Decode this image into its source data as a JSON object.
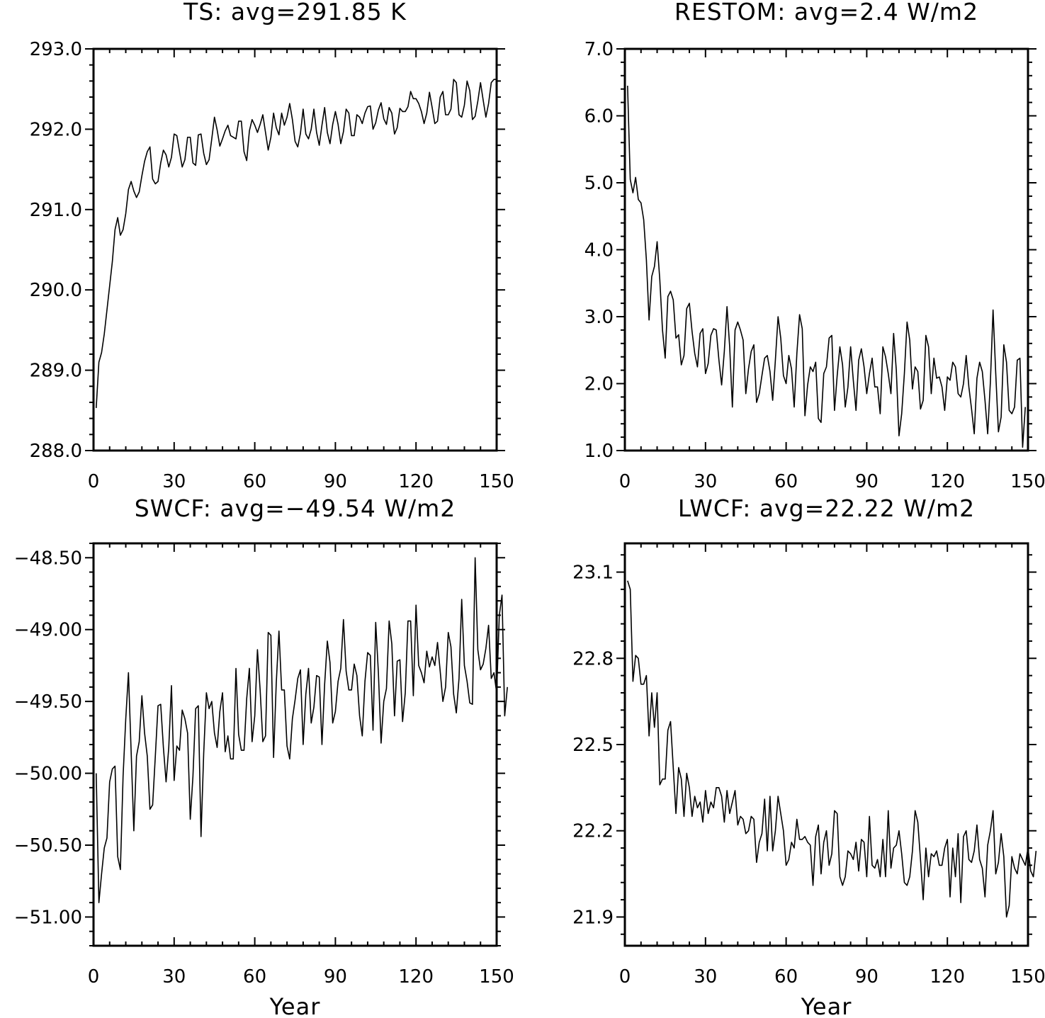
{
  "chart_data": [
    {
      "type": "line",
      "title": "TS: avg=291.85 K",
      "xlabel": "",
      "ylabel": "",
      "xlim": [
        0,
        150
      ],
      "ylim": [
        288.0,
        293.0
      ],
      "xticks": [
        0,
        30,
        60,
        90,
        120,
        150
      ],
      "xtick_labels": [
        "0",
        "30",
        "60",
        "90",
        "120",
        "150"
      ],
      "yticks": [
        288.0,
        289.0,
        290.0,
        291.0,
        292.0,
        293.0
      ],
      "ytick_labels": [
        "288.0",
        "289.0",
        "290.0",
        "291.0",
        "292.0",
        "293.0"
      ],
      "x_start": 1,
      "values": [
        288.53,
        289.1,
        289.22,
        289.45,
        289.75,
        290.05,
        290.35,
        290.75,
        290.9,
        290.68,
        290.75,
        290.95,
        291.25,
        291.35,
        291.23,
        291.15,
        291.22,
        291.42,
        291.6,
        291.72,
        291.78,
        291.38,
        291.32,
        291.35,
        291.58,
        291.74,
        291.68,
        291.53,
        291.65,
        291.94,
        291.92,
        291.72,
        291.53,
        291.62,
        291.9,
        291.9,
        291.58,
        291.55,
        291.93,
        291.94,
        291.7,
        291.56,
        291.62,
        291.88,
        292.15,
        291.99,
        291.79,
        291.88,
        291.98,
        292.05,
        291.92,
        291.9,
        291.88,
        292.1,
        292.1,
        291.72,
        291.61,
        291.98,
        292.12,
        292.05,
        291.96,
        292.06,
        292.18,
        291.96,
        291.74,
        291.9,
        292.2,
        292.02,
        291.93,
        292.2,
        292.05,
        292.15,
        292.32,
        292.12,
        291.85,
        291.78,
        291.95,
        292.25,
        291.94,
        291.88,
        292.0,
        292.25,
        291.96,
        291.8,
        292.05,
        292.27,
        291.96,
        291.82,
        292.06,
        292.22,
        292.06,
        291.82,
        291.97,
        292.25,
        292.2,
        291.92,
        291.92,
        292.18,
        292.15,
        292.07,
        292.2,
        292.28,
        292.29,
        292.0,
        292.08,
        292.24,
        292.33,
        292.13,
        292.06,
        292.27,
        292.2,
        291.94,
        292.02,
        292.26,
        292.22,
        292.22,
        292.28,
        292.47,
        292.38,
        292.38,
        292.32,
        292.22,
        292.07,
        292.2,
        292.46,
        292.27,
        292.07,
        292.1,
        292.4,
        292.47,
        292.18,
        292.18,
        292.25,
        292.62,
        292.58,
        292.18,
        292.15,
        292.3,
        292.6,
        292.48,
        292.12,
        292.16,
        292.35,
        292.58,
        292.36,
        292.15,
        292.32,
        292.58,
        292.62,
        292.62
      ]
    },
    {
      "type": "line",
      "title": "RESTOM: avg=2.4 W/m2",
      "xlabel": "",
      "ylabel": "",
      "xlim": [
        0,
        150
      ],
      "ylim": [
        1.0,
        7.0
      ],
      "xticks": [
        0,
        30,
        60,
        90,
        120,
        150
      ],
      "xtick_labels": [
        "0",
        "30",
        "60",
        "90",
        "120",
        "150"
      ],
      "yticks": [
        1.0,
        2.0,
        3.0,
        4.0,
        5.0,
        6.0,
        7.0
      ],
      "ytick_labels": [
        "1.0",
        "2.0",
        "3.0",
        "4.0",
        "5.0",
        "6.0",
        "7.0"
      ],
      "x_start": 1,
      "values": [
        6.45,
        5.05,
        4.85,
        5.08,
        4.75,
        4.7,
        4.45,
        3.85,
        2.95,
        3.6,
        3.75,
        4.12,
        3.55,
        2.8,
        2.38,
        3.3,
        3.38,
        3.25,
        2.68,
        2.73,
        2.28,
        2.42,
        3.12,
        3.2,
        2.78,
        2.45,
        2.25,
        2.75,
        2.82,
        2.15,
        2.3,
        2.72,
        2.82,
        2.8,
        2.35,
        1.98,
        2.48,
        3.15,
        2.55,
        1.65,
        2.8,
        2.92,
        2.8,
        2.65,
        1.85,
        2.22,
        2.48,
        2.58,
        1.72,
        1.85,
        2.12,
        2.38,
        2.42,
        2.18,
        1.75,
        2.35,
        3.0,
        2.68,
        2.12,
        2.0,
        2.42,
        2.22,
        1.65,
        2.45,
        3.03,
        2.82,
        1.52,
        1.98,
        2.25,
        2.18,
        2.32,
        1.48,
        1.42,
        2.15,
        2.25,
        2.68,
        2.72,
        1.6,
        2.12,
        2.55,
        2.28,
        1.65,
        1.95,
        2.55,
        2.05,
        1.6,
        2.35,
        2.52,
        2.25,
        1.85,
        2.15,
        2.38,
        1.95,
        1.95,
        1.55,
        2.55,
        2.4,
        2.15,
        1.85,
        2.75,
        2.2,
        1.22,
        1.55,
        2.15,
        2.92,
        2.65,
        1.92,
        2.25,
        2.18,
        1.62,
        1.75,
        2.72,
        2.55,
        1.85,
        2.38,
        2.08,
        2.1,
        1.95,
        1.6,
        2.1,
        2.05,
        2.32,
        2.25,
        1.85,
        1.8,
        2.0,
        2.42,
        1.95,
        1.62,
        1.25,
        2.08,
        2.32,
        2.18,
        1.75,
        1.25,
        2.02,
        3.1,
        2.15,
        1.28,
        1.5,
        2.58,
        2.32,
        1.6,
        1.55,
        1.65,
        2.35,
        2.38,
        1.05,
        1.65
      ]
    },
    {
      "type": "line",
      "title": "SWCF: avg=−49.54 W/m2",
      "xlabel": "Year",
      "ylabel": "",
      "xlim": [
        0,
        150
      ],
      "ylim": [
        -51.2,
        -48.4
      ],
      "xticks": [
        0,
        30,
        60,
        90,
        120,
        150
      ],
      "xtick_labels": [
        "0",
        "30",
        "60",
        "90",
        "120",
        "150"
      ],
      "yticks": [
        -51.0,
        -50.5,
        -50.0,
        -49.5,
        -49.0,
        -48.5
      ],
      "ytick_labels": [
        "−51.00",
        "−50.50",
        "−50.00",
        "−49.50",
        "−49.00",
        "−48.50"
      ],
      "x_start": 1,
      "values": [
        -50.0,
        -50.9,
        -50.7,
        -50.52,
        -50.45,
        -50.06,
        -49.97,
        -49.95,
        -50.58,
        -50.67,
        -50.02,
        -49.62,
        -49.3,
        -49.85,
        -50.4,
        -49.88,
        -49.78,
        -49.46,
        -49.72,
        -49.88,
        -50.25,
        -50.22,
        -49.88,
        -49.53,
        -49.52,
        -49.82,
        -50.06,
        -49.82,
        -49.39,
        -50.05,
        -49.81,
        -49.84,
        -49.56,
        -49.62,
        -49.72,
        -50.32,
        -50.02,
        -49.55,
        -49.53,
        -50.44,
        -49.86,
        -49.44,
        -49.55,
        -49.5,
        -49.72,
        -49.82,
        -49.57,
        -49.44,
        -49.85,
        -49.74,
        -49.9,
        -49.9,
        -49.27,
        -49.73,
        -49.84,
        -49.84,
        -49.48,
        -49.27,
        -49.78,
        -49.6,
        -49.14,
        -49.42,
        -49.78,
        -49.74,
        -49.02,
        -49.04,
        -49.89,
        -49.37,
        -49.01,
        -49.42,
        -49.42,
        -49.81,
        -49.9,
        -49.62,
        -49.49,
        -49.34,
        -49.28,
        -49.8,
        -49.45,
        -49.27,
        -49.65,
        -49.54,
        -49.32,
        -49.33,
        -49.8,
        -49.38,
        -49.08,
        -49.23,
        -49.65,
        -49.57,
        -49.36,
        -49.27,
        -48.93,
        -49.29,
        -49.42,
        -49.42,
        -49.24,
        -49.32,
        -49.6,
        -49.74,
        -49.36,
        -49.16,
        -49.18,
        -49.7,
        -48.95,
        -49.3,
        -49.79,
        -49.5,
        -49.41,
        -48.94,
        -49.1,
        -49.6,
        -49.22,
        -49.21,
        -49.64,
        -49.44,
        -48.94,
        -48.94,
        -49.46,
        -48.83,
        -49.25,
        -49.3,
        -49.37,
        -49.15,
        -49.26,
        -49.19,
        -49.25,
        -49.09,
        -49.29,
        -49.5,
        -49.4,
        -49.02,
        -49.12,
        -49.45,
        -49.58,
        -49.34,
        -48.79,
        -49.25,
        -49.36,
        -49.51,
        -49.52,
        -48.5,
        -49.14,
        -49.28,
        -49.24,
        -49.13,
        -48.97,
        -49.34,
        -49.3,
        -49.44,
        -48.9,
        -48.76,
        -49.6,
        -49.4
      ]
    },
    {
      "type": "line",
      "title": "LWCF: avg=22.22 W/m2",
      "xlabel": "Year",
      "ylabel": "",
      "xlim": [
        0,
        150
      ],
      "ylim": [
        21.8,
        23.2
      ],
      "xticks": [
        0,
        30,
        60,
        90,
        120,
        150
      ],
      "xtick_labels": [
        "0",
        "30",
        "60",
        "90",
        "120",
        "150"
      ],
      "yticks": [
        21.9,
        22.2,
        22.5,
        22.8,
        23.1
      ],
      "ytick_labels": [
        "21.9",
        "22.2",
        "22.5",
        "22.8",
        "23.1"
      ],
      "x_start": 1,
      "values": [
        23.07,
        23.04,
        22.72,
        22.81,
        22.8,
        22.71,
        22.71,
        22.74,
        22.53,
        22.68,
        22.56,
        22.68,
        22.36,
        22.38,
        22.38,
        22.55,
        22.58,
        22.42,
        22.26,
        22.42,
        22.38,
        22.25,
        22.4,
        22.35,
        22.25,
        22.32,
        22.28,
        22.3,
        22.23,
        22.34,
        22.26,
        22.3,
        22.28,
        22.35,
        22.35,
        22.32,
        22.23,
        22.34,
        22.26,
        22.3,
        22.34,
        22.22,
        22.25,
        22.24,
        22.19,
        22.2,
        22.25,
        22.24,
        22.09,
        22.16,
        22.19,
        22.31,
        22.13,
        22.32,
        22.13,
        22.2,
        22.32,
        22.26,
        22.2,
        22.08,
        22.1,
        22.16,
        22.14,
        22.24,
        22.17,
        22.17,
        22.18,
        22.16,
        22.15,
        22.01,
        22.18,
        22.22,
        22.05,
        22.16,
        22.2,
        22.08,
        22.12,
        22.27,
        22.26,
        22.04,
        22.01,
        22.04,
        22.13,
        22.12,
        22.1,
        22.16,
        22.06,
        22.17,
        22.16,
        22.04,
        22.25,
        22.08,
        22.07,
        22.1,
        22.04,
        22.17,
        22.04,
        22.27,
        22.07,
        22.14,
        22.15,
        22.2,
        22.12,
        22.02,
        22.01,
        22.04,
        22.13,
        22.27,
        22.23,
        22.1,
        21.96,
        22.14,
        22.04,
        22.12,
        22.11,
        22.13,
        22.08,
        22.08,
        22.14,
        22.17,
        21.97,
        22.14,
        22.04,
        22.19,
        21.95,
        22.18,
        22.2,
        22.1,
        22.09,
        22.13,
        22.22,
        22.1,
        22.07,
        21.97,
        22.15,
        22.2,
        22.27,
        22.05,
        22.09,
        22.19,
        22.11,
        21.9,
        21.94,
        22.11,
        22.07,
        22.05,
        22.12,
        22.1,
        22.08,
        22.14,
        22.06,
        22.04,
        22.13
      ]
    }
  ]
}
